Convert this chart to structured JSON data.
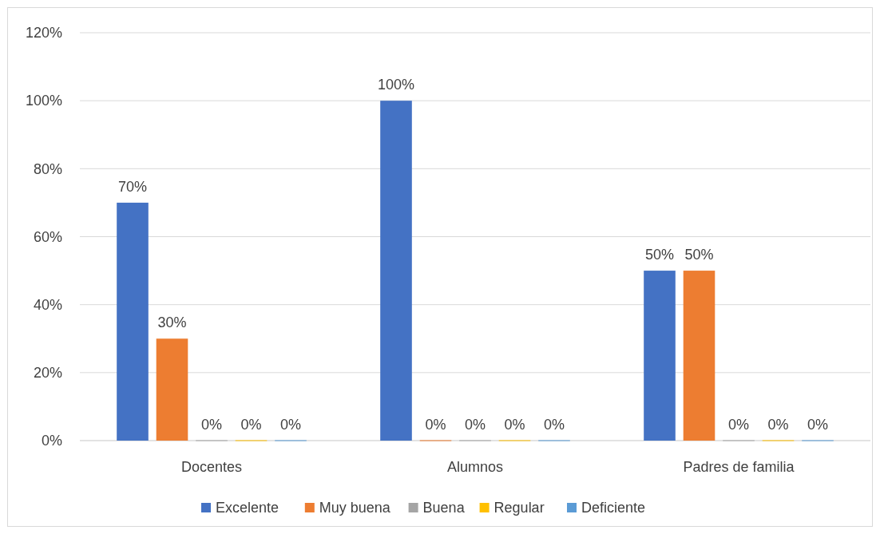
{
  "chart_data": {
    "type": "bar",
    "categories": [
      "Docentes",
      "Alumnos",
      "Padres de familia"
    ],
    "series": [
      {
        "name": "Excelente",
        "color": "#4472c4",
        "values": [
          70,
          100,
          50
        ],
        "value_labels": [
          "70%",
          "100%",
          "50%"
        ]
      },
      {
        "name": "Muy buena",
        "color": "#ed7d31",
        "values": [
          30,
          0,
          50
        ],
        "value_labels": [
          "30%",
          "0%",
          "50%"
        ]
      },
      {
        "name": "Buena",
        "color": "#a5a5a5",
        "values": [
          0,
          0,
          0
        ],
        "value_labels": [
          "0%",
          "0%",
          "0%"
        ]
      },
      {
        "name": "Regular",
        "color": "#ffc000",
        "values": [
          0,
          0,
          0
        ],
        "value_labels": [
          "0%",
          "0%",
          "0%"
        ]
      },
      {
        "name": "Deficiente",
        "color": "#5b9bd5",
        "values": [
          0,
          0,
          0
        ],
        "value_labels": [
          "0%",
          "0%",
          "0%"
        ]
      }
    ],
    "ylim": [
      0,
      120
    ],
    "yticks": [
      {
        "value": 0,
        "label": "0%"
      },
      {
        "value": 20,
        "label": "20%"
      },
      {
        "value": 40,
        "label": "40%"
      },
      {
        "value": 60,
        "label": "60%"
      },
      {
        "value": 80,
        "label": "80%"
      },
      {
        "value": 100,
        "label": "100%"
      },
      {
        "value": 120,
        "label": "120%"
      }
    ],
    "grid": "y",
    "legend": "bottom"
  }
}
